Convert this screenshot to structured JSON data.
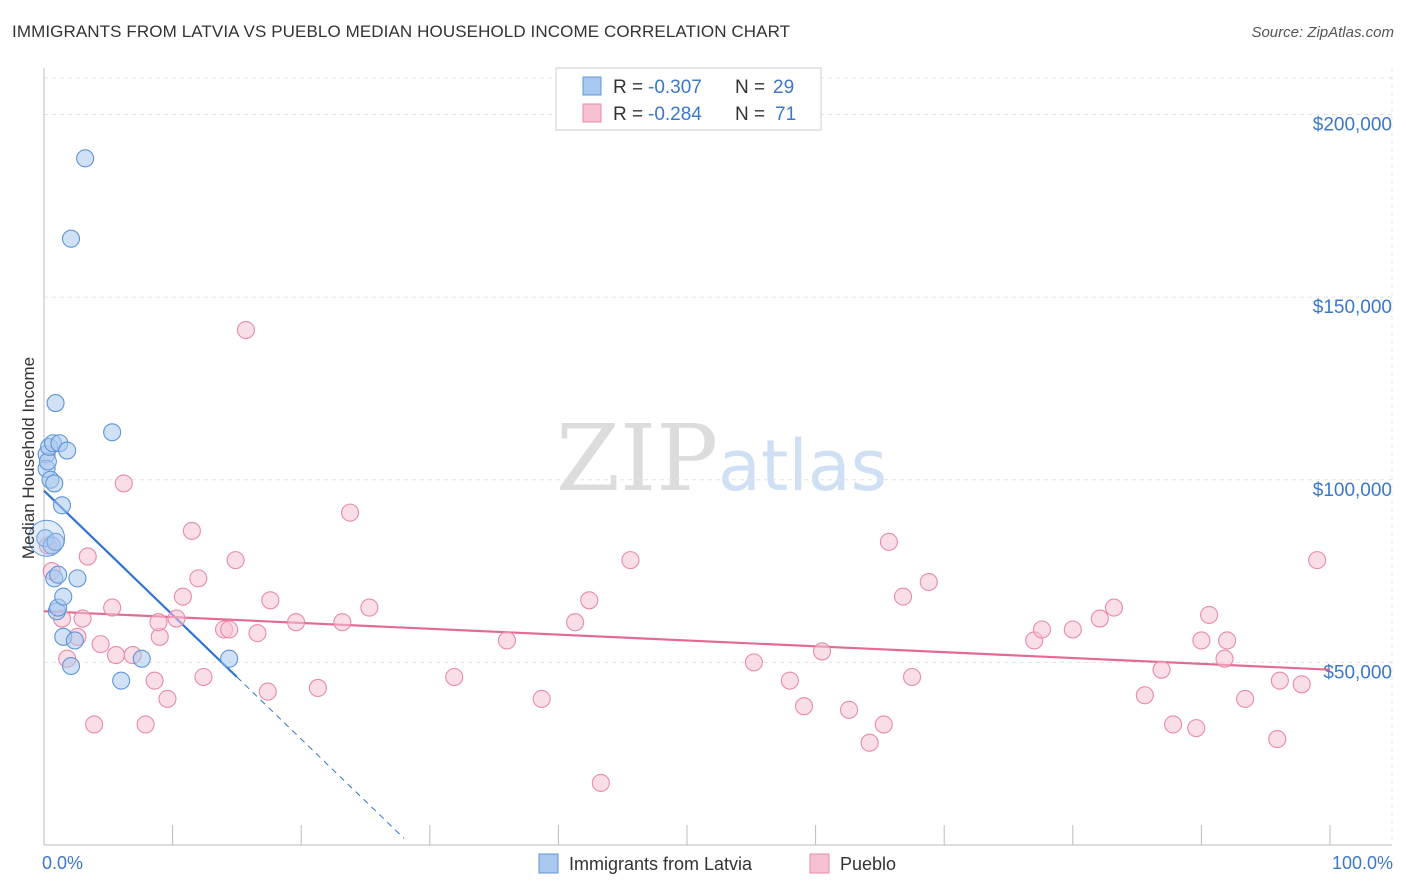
{
  "title": "IMMIGRANTS FROM LATVIA VS PUEBLO MEDIAN HOUSEHOLD INCOME CORRELATION CHART",
  "source": "Source: ZipAtlas.com",
  "watermark": {
    "zip": "ZIP",
    "atlas": "atlas"
  },
  "colors": {
    "latvia_fill": "#a9c8ef",
    "latvia_stroke": "#5f95d8",
    "latvia_line": "#2f74d0",
    "pueblo_fill": "#f6c2d3",
    "pueblo_stroke": "#e88aa9",
    "pueblo_line": "#e36a93",
    "axis_text": "#3c78c8",
    "grid": "#e3e3e3"
  },
  "legend": {
    "rows": [
      {
        "r_label": "R =",
        "r_value": "-0.307",
        "n_label": "N =",
        "n_value": "29"
      },
      {
        "r_label": "R =",
        "r_value": "-0.284",
        "n_label": "N =",
        "n_value": "71"
      }
    ]
  },
  "chart_data": {
    "type": "scatter",
    "title": "IMMIGRANTS FROM LATVIA VS PUEBLO MEDIAN HOUSEHOLD INCOME CORRELATION CHART",
    "xlabel": "",
    "ylabel": "Median Household Income",
    "xlim": [
      0,
      100
    ],
    "ylim": [
      0,
      210000
    ],
    "x_tick_labels": [
      "0.0%",
      "100.0%"
    ],
    "y_ticks": [
      50000,
      100000,
      150000,
      200000
    ],
    "y_tick_labels": [
      "$50,000",
      "$100,000",
      "$150,000",
      "$200,000"
    ],
    "legend_position": "top-center",
    "series": [
      {
        "name": "Immigrants from Latvia",
        "r": -0.307,
        "n": 29,
        "trend": {
          "x0": 0,
          "y0": 97000,
          "x1": 15,
          "y1": 46000,
          "dash_to_x": 28
        },
        "points": [
          [
            0.1,
            84000
          ],
          [
            0.2,
            107000
          ],
          [
            0.2,
            103000
          ],
          [
            0.3,
            105000
          ],
          [
            0.4,
            109000
          ],
          [
            0.5,
            100000
          ],
          [
            0.6,
            82000
          ],
          [
            0.7,
            110000
          ],
          [
            0.8,
            99000
          ],
          [
            0.8,
            73000
          ],
          [
            0.9,
            121000
          ],
          [
            1.0,
            64000
          ],
          [
            1.1,
            74000
          ],
          [
            1.1,
            65000
          ],
          [
            1.2,
            110000
          ],
          [
            1.4,
            93000
          ],
          [
            1.5,
            68000
          ],
          [
            1.5,
            57000
          ],
          [
            1.8,
            108000
          ],
          [
            2.1,
            49000
          ],
          [
            2.4,
            56000
          ],
          [
            2.6,
            73000
          ],
          [
            2.1,
            166000
          ],
          [
            3.2,
            188000
          ],
          [
            5.3,
            113000
          ],
          [
            7.6,
            51000
          ],
          [
            6.0,
            45000
          ],
          [
            14.4,
            51000
          ],
          [
            0.9,
            83000
          ]
        ]
      },
      {
        "name": "Pueblo",
        "r": -0.284,
        "n": 71,
        "trend": {
          "x0": 0,
          "y0": 64000,
          "x1": 100,
          "y1": 48000
        },
        "points": [
          [
            0.3,
            82000
          ],
          [
            1.4,
            62000
          ],
          [
            1.8,
            51000
          ],
          [
            2.6,
            57000
          ],
          [
            3.4,
            79000
          ],
          [
            3.9,
            33000
          ],
          [
            4.4,
            55000
          ],
          [
            5.3,
            65000
          ],
          [
            5.6,
            52000
          ],
          [
            6.2,
            99000
          ],
          [
            6.9,
            52000
          ],
          [
            7.9,
            33000
          ],
          [
            8.6,
            45000
          ],
          [
            9.0,
            57000
          ],
          [
            9.6,
            40000
          ],
          [
            10.3,
            62000
          ],
          [
            10.8,
            68000
          ],
          [
            11.5,
            86000
          ],
          [
            12.0,
            73000
          ],
          [
            12.4,
            46000
          ],
          [
            14.0,
            59000
          ],
          [
            14.4,
            59000
          ],
          [
            14.9,
            78000
          ],
          [
            15.7,
            141000
          ],
          [
            16.6,
            58000
          ],
          [
            17.4,
            42000
          ],
          [
            17.6,
            67000
          ],
          [
            19.6,
            61000
          ],
          [
            21.3,
            43000
          ],
          [
            23.2,
            61000
          ],
          [
            23.8,
            91000
          ],
          [
            25.3,
            65000
          ],
          [
            31.9,
            46000
          ],
          [
            36.0,
            56000
          ],
          [
            38.7,
            40000
          ],
          [
            41.3,
            61000
          ],
          [
            42.4,
            67000
          ],
          [
            43.3,
            17000
          ],
          [
            45.6,
            78000
          ],
          [
            55.2,
            50000
          ],
          [
            58.0,
            45000
          ],
          [
            59.1,
            38000
          ],
          [
            60.5,
            53000
          ],
          [
            62.6,
            37000
          ],
          [
            64.2,
            28000
          ],
          [
            65.3,
            33000
          ],
          [
            65.7,
            83000
          ],
          [
            66.8,
            68000
          ],
          [
            67.5,
            46000
          ],
          [
            68.8,
            72000
          ],
          [
            77.0,
            56000
          ],
          [
            77.6,
            59000
          ],
          [
            80.0,
            59000
          ],
          [
            82.1,
            62000
          ],
          [
            83.2,
            65000
          ],
          [
            85.6,
            41000
          ],
          [
            86.9,
            48000
          ],
          [
            87.8,
            33000
          ],
          [
            89.6,
            32000
          ],
          [
            90.0,
            56000
          ],
          [
            90.6,
            63000
          ],
          [
            91.8,
            51000
          ],
          [
            92.0,
            56000
          ],
          [
            93.4,
            40000
          ],
          [
            95.9,
            29000
          ],
          [
            96.1,
            45000
          ],
          [
            97.8,
            44000
          ],
          [
            99.0,
            78000
          ],
          [
            0.6,
            75000
          ],
          [
            3.0,
            62000
          ],
          [
            8.9,
            61000
          ]
        ]
      }
    ]
  }
}
